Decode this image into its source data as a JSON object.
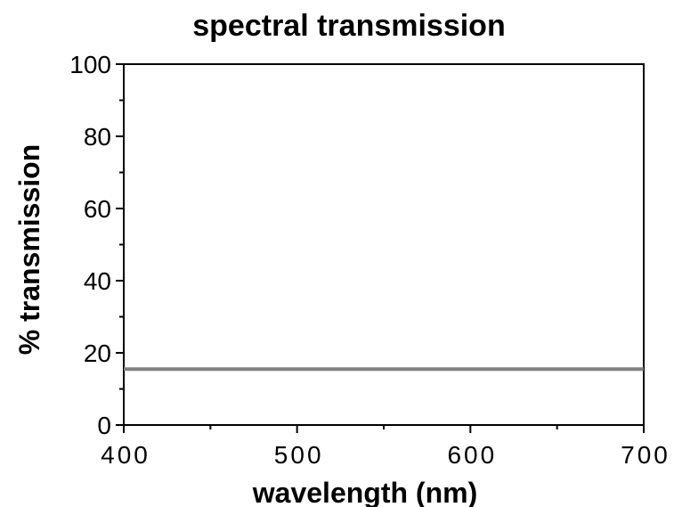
{
  "chart_data": {
    "type": "line",
    "title": "spectral transmission",
    "xlabel": "wavelength (nm)",
    "ylabel": "% transmission",
    "xlim": [
      400,
      700
    ],
    "ylim": [
      0,
      100
    ],
    "x_ticks": [
      400,
      500,
      600,
      700
    ],
    "x_minor_ticks": [
      450,
      550,
      650
    ],
    "y_ticks": [
      0,
      20,
      40,
      60,
      80,
      100
    ],
    "y_minor_ticks": [
      10,
      30,
      50,
      70,
      90
    ],
    "grid": false,
    "legend": "none",
    "series": [
      {
        "x": [
          400,
          700
        ],
        "y": [
          15.5,
          15.5
        ],
        "color": "#808080"
      }
    ]
  }
}
